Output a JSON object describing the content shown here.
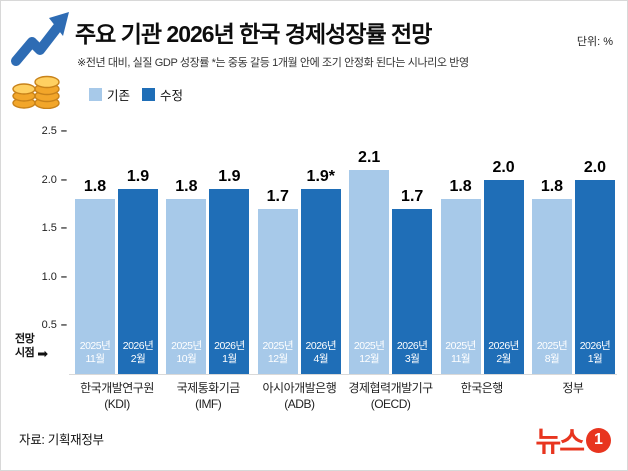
{
  "header": {
    "title": "주요 기관 2026년 한국 경제성장률 전망",
    "unit": "단위: %",
    "note": "※전년 대비, 실질 GDP 성장률  *는 중동 갈등 1개월 안에 조기 안정화 된다는 시나리오 반영"
  },
  "legend": [
    {
      "label": "기존"
    },
    {
      "label": "수정"
    }
  ],
  "colors": {
    "existing": "#a7c9e9",
    "revised": "#1f6eb7",
    "brand_red": "#e8351f"
  },
  "annotations": {
    "forecast_point_line1": "전망",
    "forecast_point_line2": "시점",
    "arrow": "➡"
  },
  "footer": {
    "source": "자료: 기획재정부",
    "logo_text": "뉴스",
    "logo_number": "1"
  },
  "chart_data": {
    "type": "bar",
    "title": "주요 기관 2026년 한국 경제성장률 전망",
    "ylabel": "%",
    "ylim": [
      0,
      2.5
    ],
    "yticks": [
      0.5,
      1.0,
      1.5,
      2.0,
      2.5
    ],
    "series_names": [
      "기존",
      "수정"
    ],
    "legend_position": "top-left",
    "grid": false,
    "groups": [
      {
        "institution": "한국개발연구원",
        "abbr": "(KDI)",
        "bars": [
          {
            "series": "기존",
            "value": 1.8,
            "label": "1.8",
            "date": "2025년 11월"
          },
          {
            "series": "수정",
            "value": 1.9,
            "label": "1.9",
            "date": "2026년 2월"
          }
        ]
      },
      {
        "institution": "국제통화기금",
        "abbr": "(IMF)",
        "bars": [
          {
            "series": "기존",
            "value": 1.8,
            "label": "1.8",
            "date": "2025년 10월"
          },
          {
            "series": "수정",
            "value": 1.9,
            "label": "1.9",
            "date": "2026년 1월"
          }
        ]
      },
      {
        "institution": "아시아개발은행",
        "abbr": "(ADB)",
        "bars": [
          {
            "series": "기존",
            "value": 1.7,
            "label": "1.7",
            "date": "2025년 12월"
          },
          {
            "series": "수정",
            "value": 1.9,
            "label": "1.9*",
            "date": "2026년 4월"
          }
        ]
      },
      {
        "institution": "경제협력개발기구",
        "abbr": "(OECD)",
        "bars": [
          {
            "series": "기존",
            "value": 2.1,
            "label": "2.1",
            "date": "2025년 12월"
          },
          {
            "series": "수정",
            "value": 1.7,
            "label": "1.7",
            "date": "2026년 3월"
          }
        ]
      },
      {
        "institution": "한국은행",
        "abbr": "",
        "bars": [
          {
            "series": "기존",
            "value": 1.8,
            "label": "1.8",
            "date": "2025년 11월"
          },
          {
            "series": "수정",
            "value": 2.0,
            "label": "2.0",
            "date": "2026년 2월"
          }
        ]
      },
      {
        "institution": "정부",
        "abbr": "",
        "bars": [
          {
            "series": "기존",
            "value": 1.8,
            "label": "1.8",
            "date": "2025년 8월"
          },
          {
            "series": "수정",
            "value": 2.0,
            "label": "2.0",
            "date": "2026년 1월"
          }
        ]
      }
    ]
  }
}
